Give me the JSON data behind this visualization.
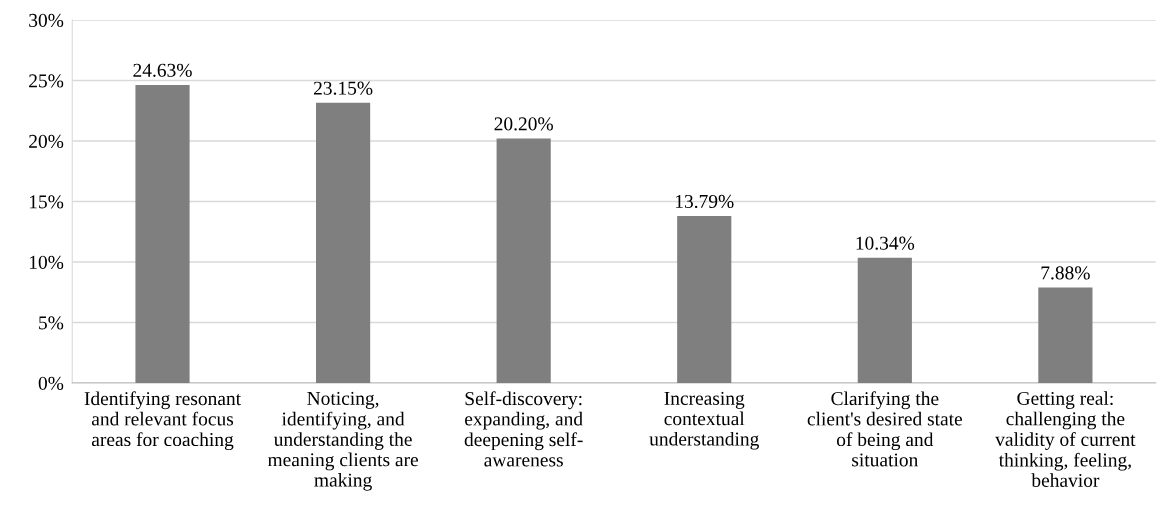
{
  "chart_data": {
    "type": "bar",
    "categories": [
      "Identifying resonant\nand relevant focus\nareas for coaching",
      "Noticing,\nidentifying, and\nunderstanding the\nmeaning clients are\nmaking",
      "Self-discovery:\nexpanding, and\ndeepening self-\nawareness",
      "Increasing\ncontextual\nunderstanding",
      "Clarifying the\nclient's desired state\nof being and\nsituation",
      "Getting real:\nchallenging the\nvalidity of current\nthinking, feeling,\nbehavior"
    ],
    "values": [
      24.63,
      23.15,
      20.2,
      13.79,
      10.34,
      7.88
    ],
    "value_labels": [
      "24.63%",
      "23.15%",
      "20.20%",
      "13.79%",
      "10.34%",
      "7.88%"
    ],
    "color": "#7f7f7f",
    "ylim": [
      0,
      30
    ],
    "yticks": [
      {
        "value": 0,
        "label": "0%"
      },
      {
        "value": 5,
        "label": "5%"
      },
      {
        "value": 10,
        "label": "10%"
      },
      {
        "value": 15,
        "label": "15%"
      },
      {
        "value": 20,
        "label": "20%"
      },
      {
        "value": 25,
        "label": "25%"
      },
      {
        "value": 30,
        "label": "30%"
      }
    ],
    "grid": "y",
    "legend": false
  }
}
